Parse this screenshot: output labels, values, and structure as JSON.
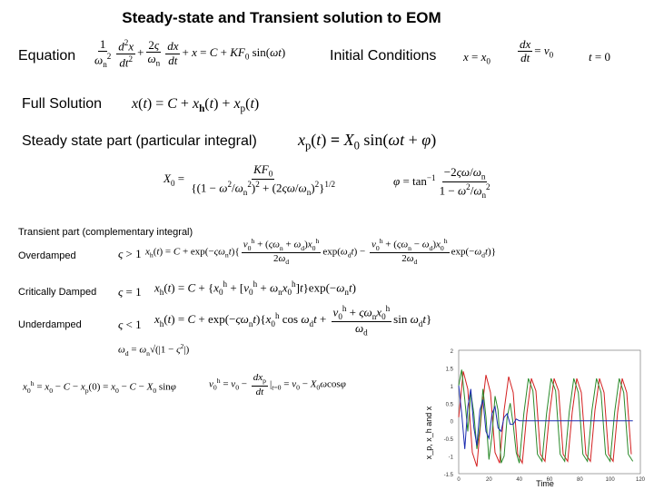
{
  "title": "Steady-state and Transient solution to EOM",
  "labels": {
    "equation": "Equation",
    "initial_conditions": "Initial Conditions",
    "full_solution": "Full Solution",
    "steady_state": "Steady state part (particular integral)",
    "transient": "Transient part (complementary integral)",
    "overdamped": "Overdamped",
    "critically_damped": "Critically Damped",
    "underdamped": "Underdamped"
  },
  "plot": {
    "ylabel": "x_p, x_h and x",
    "xlabel": "Time",
    "yticks": [
      "2",
      "1.5",
      "1",
      "0.5",
      "0",
      "-0.5",
      "-1",
      "-1.5"
    ],
    "xticks": [
      "0",
      "20",
      "40",
      "60",
      "80",
      "100",
      "120"
    ]
  },
  "chart_data": {
    "type": "line",
    "title": "",
    "xlabel": "Time",
    "ylabel": "x_p, x_h and x",
    "xlim": [
      0,
      120
    ],
    "ylim": [
      -1.5,
      2
    ],
    "series": [
      {
        "color": "#d42020",
        "x": [
          0,
          3,
          6,
          9,
          12,
          15,
          18,
          21,
          24,
          27,
          30,
          33,
          36,
          39,
          42,
          45,
          48,
          51,
          54,
          57,
          60,
          63,
          66,
          69,
          72,
          75,
          78,
          81,
          84,
          87,
          90,
          93,
          96,
          99,
          102,
          105,
          108,
          111,
          114
        ],
        "y": [
          0.1,
          1.4,
          0.9,
          -0.9,
          -1.3,
          0.2,
          1.3,
          0.8,
          -0.9,
          -1.2,
          0.3,
          1.25,
          0.8,
          -0.95,
          -1.2,
          0.2,
          1.2,
          0.85,
          -0.95,
          -1.15,
          0.2,
          1.2,
          0.85,
          -0.95,
          -1.15,
          0.25,
          1.2,
          0.8,
          -0.95,
          -1.15,
          0.3,
          1.2,
          0.8,
          -0.95,
          -1.15,
          0.25,
          1.2,
          0.8,
          -0.95
        ]
      },
      {
        "color": "#2a8a2a",
        "x": [
          0,
          2,
          4,
          6,
          8,
          10,
          12,
          14,
          16,
          18,
          20,
          22,
          24,
          26,
          28,
          30,
          32,
          34,
          36,
          38,
          40,
          43,
          46,
          49,
          52,
          55,
          58,
          61,
          64,
          67,
          70,
          73,
          76,
          79,
          82,
          85,
          88,
          91,
          94,
          97,
          100,
          103,
          106,
          109,
          112,
          115
        ],
        "y": [
          1.0,
          1.45,
          0.6,
          -0.3,
          0.8,
          0.2,
          -0.8,
          -0.2,
          0.9,
          0.1,
          -1.1,
          -0.4,
          0.7,
          0.3,
          -1.2,
          -1.0,
          0.1,
          0.5,
          -0.1,
          -0.9,
          -1.2,
          0.2,
          1.2,
          0.85,
          -0.95,
          -1.15,
          0.2,
          1.2,
          0.85,
          -0.95,
          -1.15,
          0.25,
          1.2,
          0.8,
          -0.95,
          -1.15,
          0.3,
          1.2,
          0.8,
          -0.95,
          -1.15,
          0.25,
          1.2,
          0.8,
          -0.95,
          -1.15
        ]
      },
      {
        "color": "#1a2ab0",
        "x": [
          0,
          2,
          4,
          6,
          8,
          10,
          12,
          14,
          16,
          18,
          20,
          22,
          24,
          26,
          28,
          30,
          32,
          34,
          36,
          38,
          40,
          45,
          60,
          80,
          100,
          115
        ],
        "y": [
          1.0,
          0.2,
          -0.8,
          0.4,
          0.9,
          -0.2,
          -0.7,
          0.3,
          0.6,
          -0.3,
          -0.5,
          0.2,
          0.4,
          -0.2,
          -0.3,
          0.1,
          0.2,
          -0.1,
          -0.1,
          0.05,
          0,
          0,
          0,
          0,
          0,
          0
        ]
      }
    ]
  }
}
